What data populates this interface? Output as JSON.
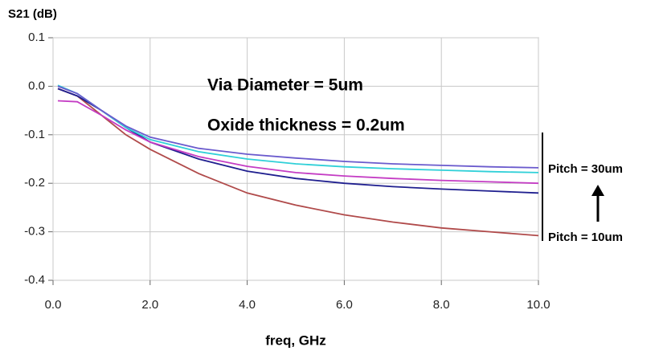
{
  "chart_data": {
    "type": "line",
    "y_label": "S21 (dB)",
    "x_label": "freq, GHz",
    "annotations": [
      "Via Diameter = 5um",
      "Oxide thickness = 0.2um",
      "Pitch = 30um",
      "Pitch = 10um"
    ],
    "x": [
      0.1,
      0.5,
      1,
      1.5,
      2,
      3,
      4,
      5,
      6,
      7,
      8,
      9,
      10
    ],
    "series": [
      {
        "color": "#b04a4a",
        "values": [
          -0.005,
          -0.02,
          -0.06,
          -0.1,
          -0.13,
          -0.18,
          -0.22,
          -0.245,
          -0.265,
          -0.28,
          -0.292,
          -0.3,
          -0.308
        ]
      },
      {
        "color": "#1f1f8f",
        "values": [
          -0.005,
          -0.02,
          -0.05,
          -0.085,
          -0.115,
          -0.15,
          -0.175,
          -0.19,
          -0.2,
          -0.207,
          -0.212,
          -0.216,
          -0.22
        ]
      },
      {
        "color": "#c43cc4",
        "values": [
          -0.03,
          -0.032,
          -0.06,
          -0.09,
          -0.115,
          -0.145,
          -0.165,
          -0.178,
          -0.185,
          -0.19,
          -0.194,
          -0.197,
          -0.2
        ]
      },
      {
        "color": "#30d0d8",
        "values": [
          0.002,
          -0.015,
          -0.05,
          -0.085,
          -0.11,
          -0.135,
          -0.15,
          -0.16,
          -0.166,
          -0.17,
          -0.173,
          -0.176,
          -0.178
        ]
      },
      {
        "color": "#6a5acd",
        "values": [
          0,
          -0.015,
          -0.05,
          -0.082,
          -0.105,
          -0.128,
          -0.14,
          -0.148,
          -0.155,
          -0.16,
          -0.163,
          -0.166,
          -0.168
        ]
      }
    ],
    "xlim": [
      0,
      10
    ],
    "ylim": [
      -0.4,
      0.1
    ],
    "xticks": [
      {
        "value": 0,
        "label": "0.0"
      },
      {
        "value": 2,
        "label": "2.0"
      },
      {
        "value": 4,
        "label": "4.0"
      },
      {
        "value": 6,
        "label": "6.0"
      },
      {
        "value": 8,
        "label": "8.0"
      },
      {
        "value": 10,
        "label": "10.0"
      }
    ],
    "yticks": [
      0.1,
      {
        "value": 0,
        "label": "0.0"
      },
      -0.1,
      -0.2,
      -0.3,
      -0.4
    ],
    "grid": true
  }
}
